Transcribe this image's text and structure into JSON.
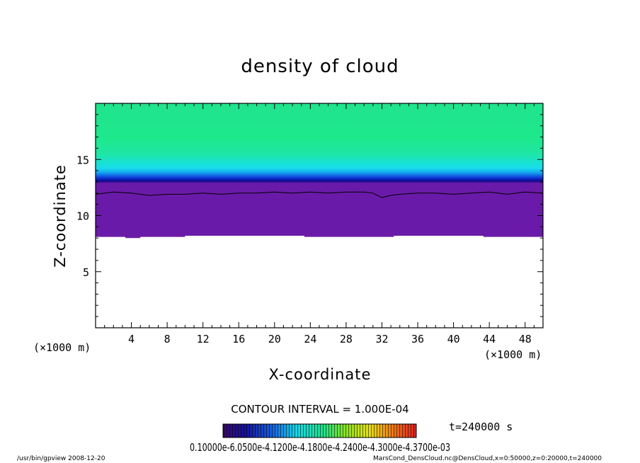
{
  "chart_data": {
    "type": "heatmap",
    "title": "density of cloud",
    "xlabel": "X-coordinate",
    "ylabel": "Z-coordinate",
    "x_unit": "(×1000 m)",
    "y_unit": "(×1000 m)",
    "xlim": [
      0,
      50
    ],
    "ylim": [
      0,
      20
    ],
    "x_ticks": [
      4,
      8,
      12,
      16,
      20,
      24,
      28,
      32,
      36,
      40,
      44,
      48
    ],
    "y_ticks": [
      5,
      10,
      15
    ],
    "contour_interval_text": "CONTOUR INTERVAL = 1.000E-04",
    "time_text": "t=240000 s",
    "colorbar_labels_text": "0.10000e-6.0500e-4.1200e-4.1800e-4.2400e-4.3000e-4.3700e-03",
    "cloud_base_z": [
      8.1,
      8.1,
      8.0,
      8.1,
      8.1,
      8.1,
      8.2,
      8.2,
      8.2,
      8.2,
      8.2,
      8.2,
      8.2,
      8.2,
      8.1,
      8.1,
      8.1,
      8.1,
      8.1,
      8.1,
      8.2,
      8.2,
      8.2,
      8.2,
      8.2,
      8.2,
      8.1,
      8.1,
      8.1,
      8.1
    ],
    "contour_line_x": [
      0,
      2,
      4,
      6,
      8,
      10,
      12,
      14,
      16,
      18,
      20,
      22,
      24,
      26,
      28,
      30,
      31,
      32,
      33,
      34,
      36,
      38,
      40,
      42,
      44,
      46,
      48,
      50
    ],
    "contour_line_z": [
      11.9,
      12.1,
      12.0,
      11.8,
      11.9,
      11.9,
      12.0,
      11.9,
      12.0,
      12.0,
      12.1,
      12.0,
      12.1,
      12.0,
      12.1,
      12.1,
      12.0,
      11.6,
      11.8,
      11.9,
      12.0,
      12.0,
      11.9,
      12.0,
      12.1,
      11.9,
      12.1,
      12.0
    ],
    "colors": {
      "upper_green": "#1ee88c",
      "mid_cyan": "#19e0e6",
      "blue": "#1040e0",
      "deep_blue": "#0a0a8a",
      "purple_base": "#6a1aa8"
    }
  },
  "footer": {
    "left": "/usr/bin/gpview   2008-12-20",
    "right": "MarsCond_DensCloud.nc@DensCloud,x=0:50000,z=0:20000,t=240000"
  }
}
